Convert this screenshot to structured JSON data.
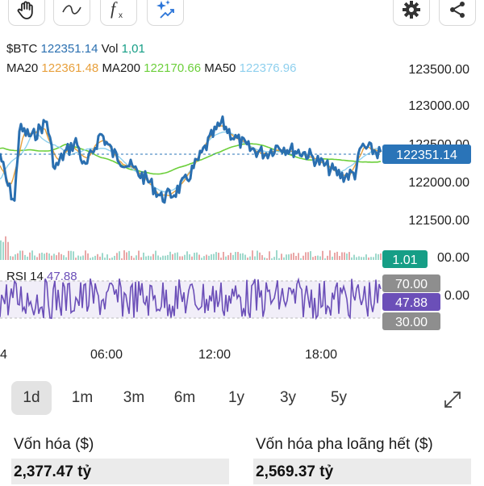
{
  "toolbar": {
    "tools": [
      {
        "icon": "hand-icon"
      },
      {
        "icon": "wave-line-icon"
      },
      {
        "icon": "function-icon"
      },
      {
        "icon": "sparkle-trend-icon"
      }
    ],
    "right": [
      {
        "icon": "gear-icon"
      },
      {
        "icon": "share-icon"
      }
    ]
  },
  "legend": {
    "symbol": "$BTC",
    "price": "122351.14",
    "vol_label": "Vol",
    "vol_value": "1,01",
    "ma20_label": "MA20",
    "ma20_value": "122361.48",
    "ma200_label": "MA200",
    "ma200_value": "122170.66",
    "ma50_label": "MA50",
    "ma50_value": "122376.96"
  },
  "rsi": {
    "label": "RSI 14",
    "value": "47.88"
  },
  "price_axis": [
    "123500.00",
    "123000.00",
    "122500.00",
    "122000.00",
    "121500.00"
  ],
  "rsi_axis_partial": [
    "00.00",
    "0.00"
  ],
  "badges": {
    "price": "122351.14",
    "volume": "1.01",
    "rsi_upper": "70.00",
    "rsi_value": "47.88",
    "rsi_lower": "30.00"
  },
  "time_axis": [
    "4",
    "06:00",
    "12:00",
    "18:00"
  ],
  "timeframes": [
    "1d",
    "1m",
    "3m",
    "6m",
    "1y",
    "3y",
    "5y"
  ],
  "active_timeframe": "1d",
  "expand_icon": "expand-icon",
  "stats": [
    {
      "label": "Vốn hóa ($)",
      "value": "2,377.47 tỷ"
    },
    {
      "label": "Vốn hóa pha loãng hết ($)",
      "value": "2,569.37 tỷ"
    }
  ],
  "colors": {
    "price_line": "#2a6fb0",
    "ma20": "#e8a03c",
    "ma200": "#6ccf3b",
    "ma50": "#8fd0ee",
    "rsi": "#6b4fb8",
    "vol_badge": "#169e86",
    "price_badge": "#2a74b8"
  }
}
